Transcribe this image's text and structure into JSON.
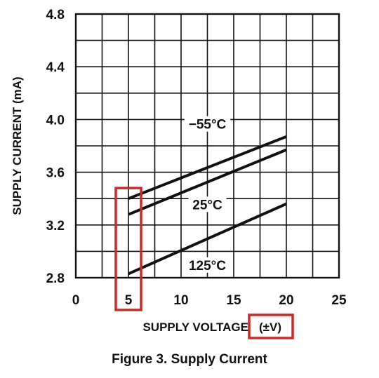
{
  "chart_data": {
    "type": "line",
    "xlabel": "SUPPLY VOLTAGE",
    "xunit": "(±V)",
    "ylabel": "SUPPLY CURRENT (mA)",
    "xlim": [
      0,
      25
    ],
    "ylim": [
      2.8,
      4.8
    ],
    "xticks": [
      "0",
      "5",
      "10",
      "15",
      "20",
      "25"
    ],
    "yticks": [
      "2.8",
      "3.2",
      "3.6",
      "4.0",
      "4.4",
      "4.8"
    ],
    "grid": true,
    "series": [
      {
        "name": "−55°C",
        "x": [
          5,
          20
        ],
        "y": [
          3.4,
          3.87
        ]
      },
      {
        "name": "25°C",
        "x": [
          5,
          20
        ],
        "y": [
          3.28,
          3.77
        ]
      },
      {
        "name": "125°C",
        "x": [
          5,
          20
        ],
        "y": [
          2.83,
          3.36
        ]
      }
    ],
    "highlights": [
      "x = 5",
      "(±V)"
    ],
    "highlight_color": "#cc2a2a"
  },
  "caption": "Figure 3. Supply Current"
}
